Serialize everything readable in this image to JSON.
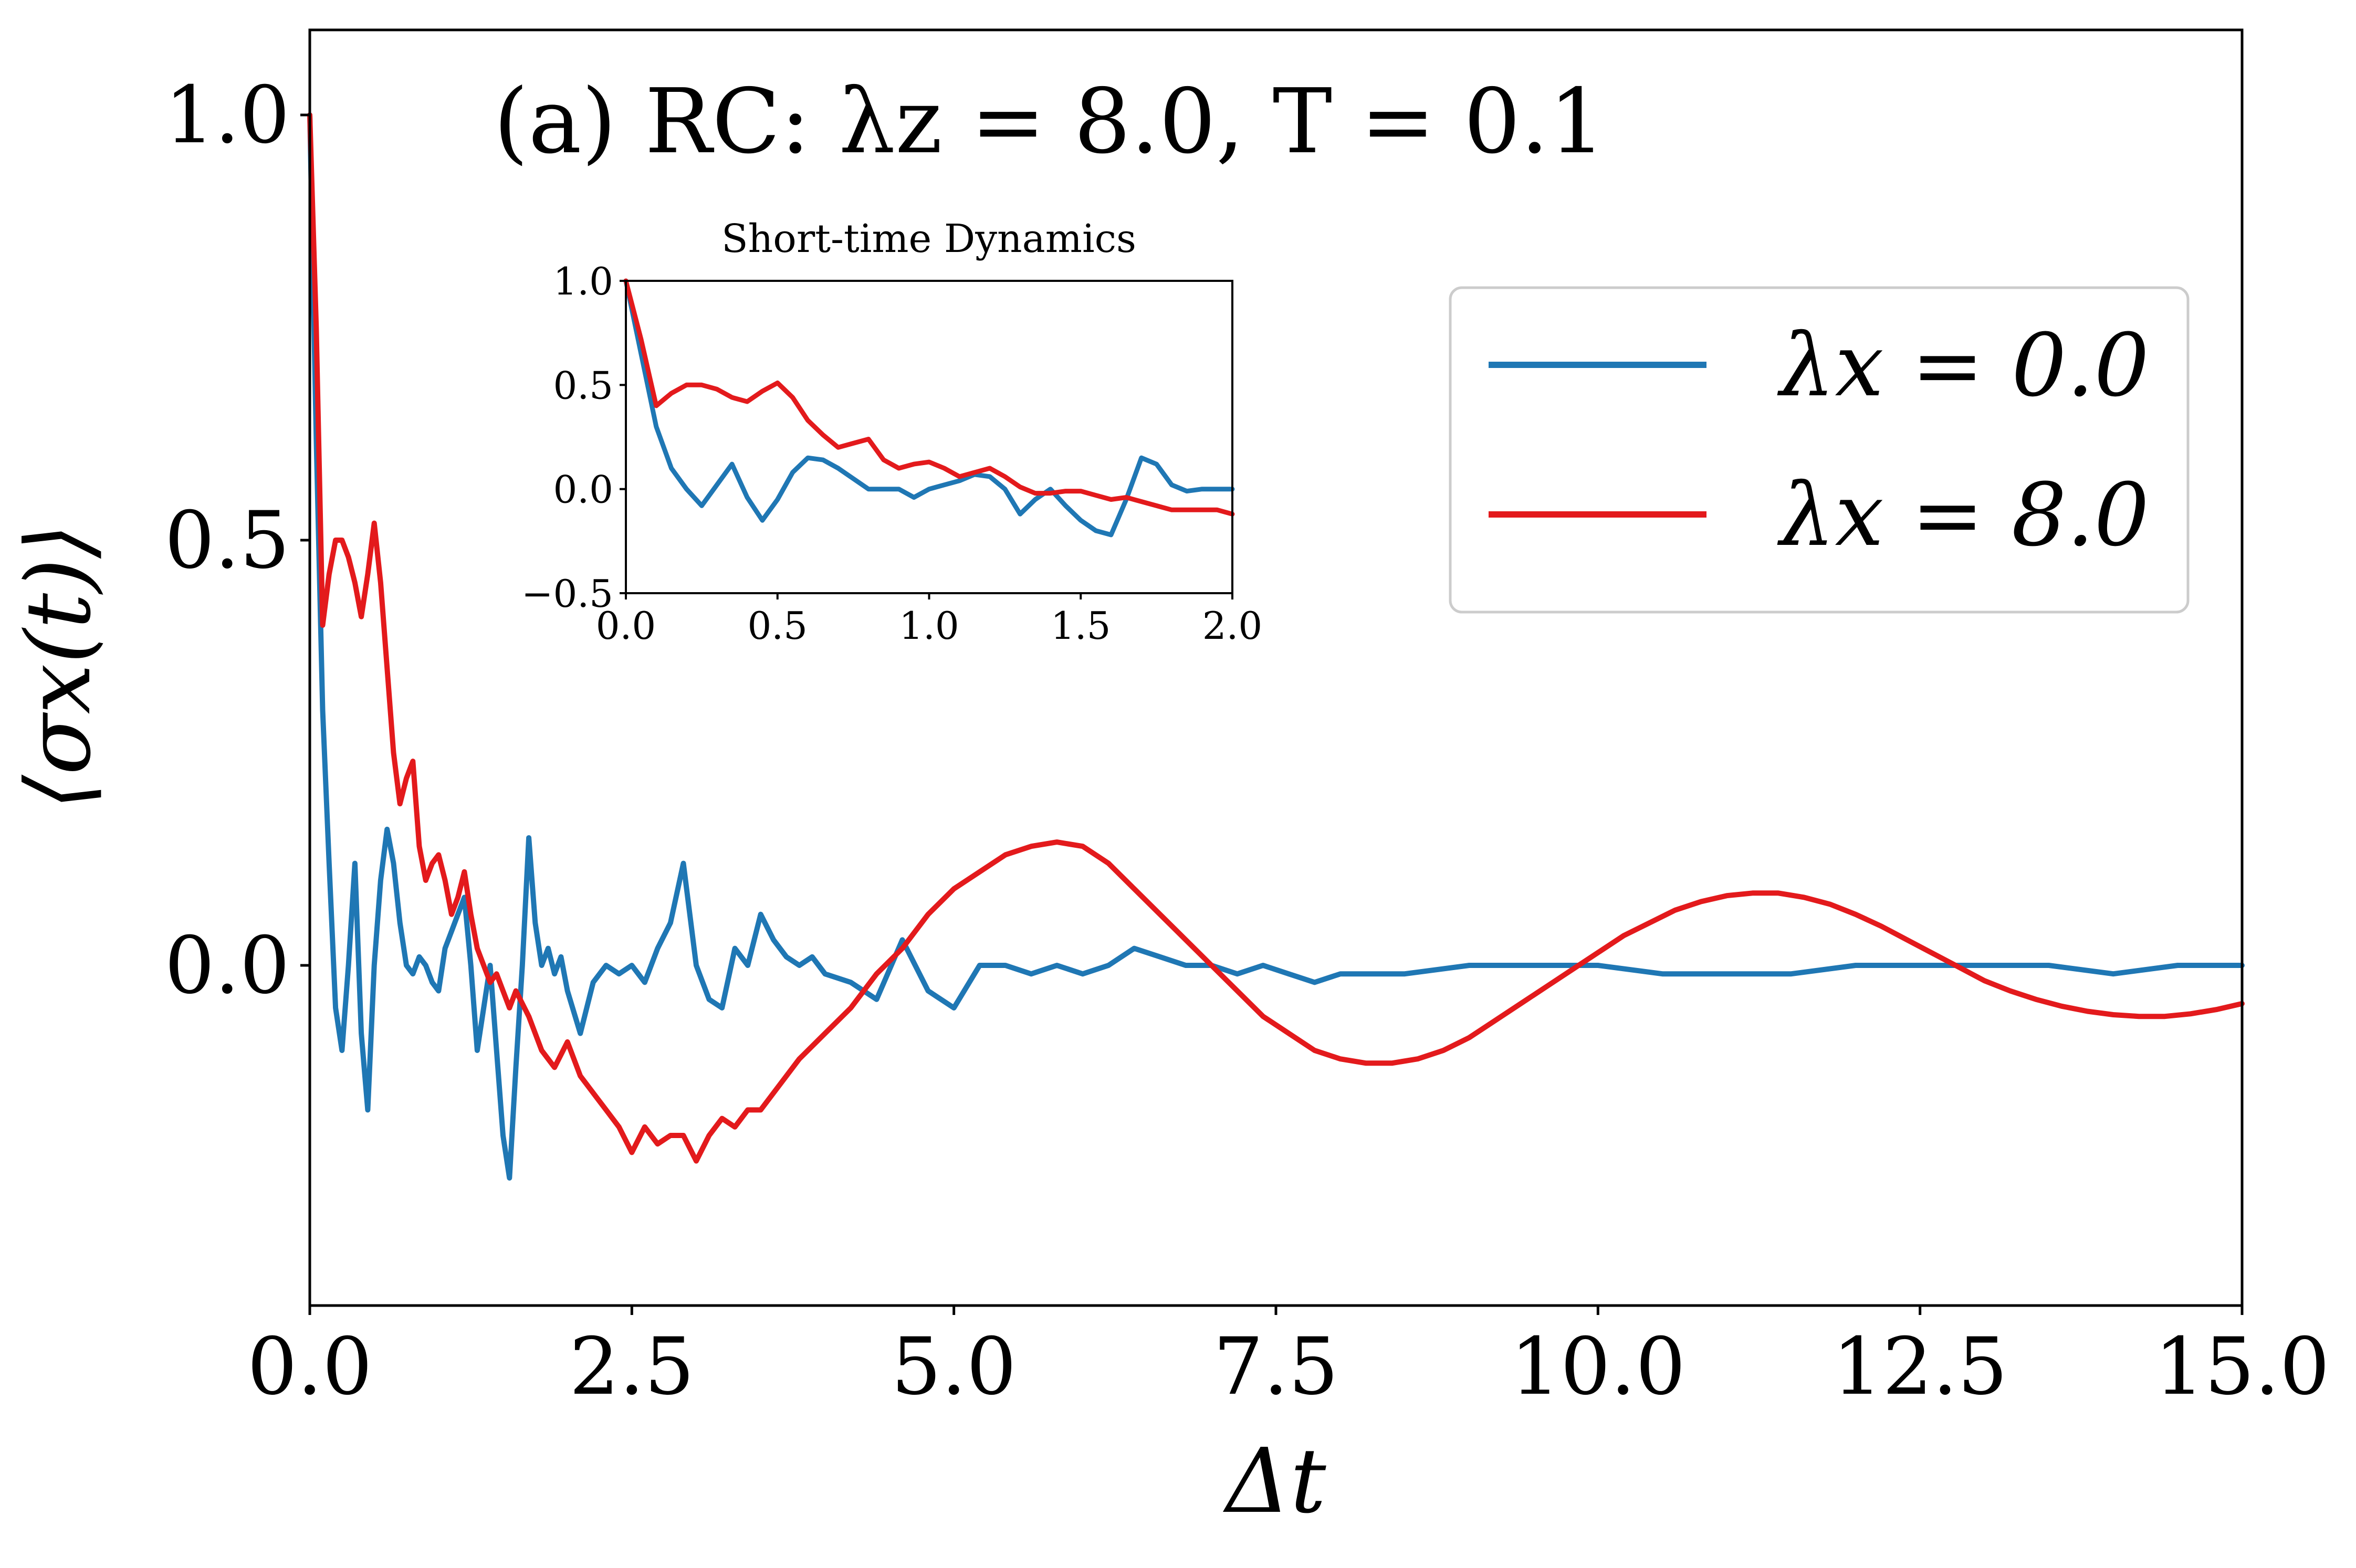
{
  "chart_data": [
    {
      "type": "line",
      "title": "(a) RC: λz = 8.0, T = 0.1",
      "xlabel": "Δt",
      "ylabel": "⟨σx(t)⟩",
      "xlim": [
        0,
        15
      ],
      "ylim": [
        -0.4,
        1.1
      ],
      "xticks": [
        0,
        2.5,
        5,
        7.5,
        10,
        12.5,
        15
      ],
      "xtick_labels": [
        "0.0",
        "2.5",
        "5.0",
        "7.5",
        "10.0",
        "12.5",
        "15.0"
      ],
      "yticks": [
        0,
        0.5,
        1.0
      ],
      "ytick_labels": [
        "0.0",
        "0.5",
        "1.0"
      ],
      "grid": false,
      "legend_position": "top-right",
      "series": [
        {
          "name": "λx = 0.0",
          "color": "#1f77b4",
          "x": [
            0,
            0.05,
            0.1,
            0.15,
            0.2,
            0.25,
            0.3,
            0.35,
            0.4,
            0.45,
            0.5,
            0.55,
            0.6,
            0.65,
            0.7,
            0.75,
            0.8,
            0.85,
            0.9,
            0.95,
            1.0,
            1.05,
            1.1,
            1.15,
            1.2,
            1.25,
            1.3,
            1.35,
            1.4,
            1.45,
            1.5,
            1.55,
            1.6,
            1.65,
            1.7,
            1.75,
            1.8,
            1.85,
            1.9,
            1.95,
            2.0,
            2.1,
            2.2,
            2.3,
            2.4,
            2.5,
            2.6,
            2.7,
            2.8,
            2.9,
            3.0,
            3.1,
            3.2,
            3.3,
            3.4,
            3.5,
            3.6,
            3.7,
            3.8,
            3.9,
            4.0,
            4.2,
            4.4,
            4.6,
            4.8,
            5.0,
            5.2,
            5.4,
            5.6,
            5.8,
            6.0,
            6.2,
            6.4,
            6.6,
            6.8,
            7.0,
            7.2,
            7.4,
            7.6,
            7.8,
            8.0,
            8.5,
            9.0,
            9.5,
            10.0,
            10.5,
            11.0,
            11.5,
            12.0,
            12.5,
            13.0,
            13.5,
            14.0,
            14.5,
            15.0
          ],
          "y": [
            1.0,
            0.62,
            0.3,
            0.12,
            -0.05,
            -0.1,
            0.0,
            0.12,
            -0.08,
            -0.17,
            0.0,
            0.1,
            0.16,
            0.12,
            0.05,
            0.0,
            -0.01,
            0.01,
            0.0,
            -0.02,
            -0.03,
            0.02,
            0.04,
            0.06,
            0.08,
            0.0,
            -0.1,
            -0.05,
            0.0,
            -0.1,
            -0.2,
            -0.25,
            -0.12,
            0.0,
            0.15,
            0.05,
            0.0,
            0.02,
            -0.01,
            0.01,
            -0.03,
            -0.08,
            -0.02,
            0.0,
            -0.01,
            0.0,
            -0.02,
            0.02,
            0.05,
            0.12,
            0.0,
            -0.04,
            -0.05,
            0.02,
            0.0,
            0.06,
            0.03,
            0.01,
            0.0,
            0.01,
            -0.01,
            -0.02,
            -0.04,
            0.03,
            -0.03,
            -0.05,
            0.0,
            0.0,
            -0.01,
            0.0,
            -0.01,
            0.0,
            0.02,
            0.01,
            0.0,
            0.0,
            -0.01,
            0.0,
            -0.01,
            -0.02,
            -0.01,
            -0.01,
            0.0,
            0.0,
            0.0,
            -0.01,
            -0.01,
            -0.01,
            0.0,
            0.0,
            0.0,
            0.0,
            -0.01,
            0.0,
            0.0
          ]
        },
        {
          "name": "λx = 8.0",
          "color": "#e31a1c",
          "x": [
            0,
            0.05,
            0.1,
            0.15,
            0.2,
            0.25,
            0.3,
            0.35,
            0.4,
            0.45,
            0.5,
            0.55,
            0.6,
            0.65,
            0.7,
            0.75,
            0.8,
            0.85,
            0.9,
            0.95,
            1.0,
            1.05,
            1.1,
            1.15,
            1.2,
            1.25,
            1.3,
            1.35,
            1.4,
            1.45,
            1.5,
            1.55,
            1.6,
            1.7,
            1.8,
            1.9,
            2.0,
            2.1,
            2.2,
            2.3,
            2.4,
            2.5,
            2.6,
            2.7,
            2.8,
            2.9,
            3.0,
            3.1,
            3.2,
            3.3,
            3.4,
            3.5,
            3.6,
            3.8,
            4.0,
            4.2,
            4.4,
            4.6,
            4.8,
            5.0,
            5.2,
            5.4,
            5.6,
            5.8,
            6.0,
            6.2,
            6.4,
            6.6,
            6.8,
            7.0,
            7.2,
            7.4,
            7.6,
            7.8,
            8.0,
            8.2,
            8.4,
            8.6,
            8.8,
            9.0,
            9.2,
            9.4,
            9.6,
            9.8,
            10.0,
            10.2,
            10.4,
            10.6,
            10.8,
            11.0,
            11.2,
            11.4,
            11.6,
            11.8,
            12.0,
            12.2,
            12.4,
            12.6,
            12.8,
            13.0,
            13.2,
            13.4,
            13.6,
            13.8,
            14.0,
            14.2,
            14.4,
            14.6,
            14.8,
            15.0
          ],
          "y": [
            1.0,
            0.75,
            0.4,
            0.46,
            0.5,
            0.5,
            0.48,
            0.45,
            0.41,
            0.46,
            0.52,
            0.45,
            0.35,
            0.25,
            0.19,
            0.22,
            0.24,
            0.14,
            0.1,
            0.12,
            0.13,
            0.1,
            0.06,
            0.08,
            0.11,
            0.06,
            0.02,
            0.0,
            -0.02,
            -0.01,
            -0.03,
            -0.05,
            -0.03,
            -0.06,
            -0.1,
            -0.12,
            -0.09,
            -0.13,
            -0.15,
            -0.17,
            -0.19,
            -0.22,
            -0.19,
            -0.21,
            -0.2,
            -0.2,
            -0.23,
            -0.2,
            -0.18,
            -0.19,
            -0.17,
            -0.17,
            -0.15,
            -0.11,
            -0.08,
            -0.05,
            -0.01,
            0.02,
            0.06,
            0.09,
            0.11,
            0.13,
            0.14,
            0.145,
            0.14,
            0.12,
            0.09,
            0.06,
            0.03,
            0.0,
            -0.03,
            -0.06,
            -0.08,
            -0.1,
            -0.11,
            -0.115,
            -0.115,
            -0.11,
            -0.1,
            -0.085,
            -0.065,
            -0.045,
            -0.025,
            -0.005,
            0.015,
            0.035,
            0.05,
            0.065,
            0.075,
            0.082,
            0.085,
            0.085,
            0.08,
            0.072,
            0.06,
            0.046,
            0.03,
            0.014,
            -0.002,
            -0.018,
            -0.03,
            -0.04,
            -0.048,
            -0.054,
            -0.058,
            -0.06,
            -0.06,
            -0.057,
            -0.052,
            -0.045
          ]
        }
      ]
    },
    {
      "type": "line",
      "title": "Short-time Dynamics",
      "xlabel": "",
      "ylabel": "",
      "xlim": [
        0,
        2.0
      ],
      "ylim": [
        -0.5,
        1.0
      ],
      "xticks": [
        0,
        0.5,
        1.0,
        1.5,
        2.0
      ],
      "xtick_labels": [
        "0.0",
        "0.5",
        "1.0",
        "1.5",
        "2.0"
      ],
      "yticks": [
        -0.5,
        0,
        0.5,
        1.0
      ],
      "ytick_labels": [
        "−0.5",
        "0.0",
        "0.5",
        "1.0"
      ],
      "grid": false,
      "series": [
        {
          "name": "λx = 0.0",
          "color": "#1f77b4",
          "x": [
            0,
            0.05,
            0.1,
            0.15,
            0.2,
            0.25,
            0.3,
            0.35,
            0.4,
            0.45,
            0.5,
            0.55,
            0.6,
            0.65,
            0.7,
            0.75,
            0.8,
            0.85,
            0.9,
            0.95,
            1.0,
            1.05,
            1.1,
            1.15,
            1.2,
            1.25,
            1.3,
            1.35,
            1.4,
            1.45,
            1.5,
            1.55,
            1.6,
            1.65,
            1.7,
            1.75,
            1.8,
            1.85,
            1.9,
            1.95,
            2.0
          ],
          "y": [
            1.0,
            0.65,
            0.3,
            0.1,
            0.0,
            -0.08,
            0.02,
            0.12,
            -0.04,
            -0.15,
            -0.05,
            0.08,
            0.15,
            0.14,
            0.1,
            0.05,
            0.0,
            0.0,
            0.0,
            -0.04,
            0.0,
            0.02,
            0.04,
            0.07,
            0.06,
            0.0,
            -0.12,
            -0.05,
            0.0,
            -0.08,
            -0.15,
            -0.2,
            -0.22,
            -0.05,
            0.15,
            0.12,
            0.02,
            -0.01,
            0.0,
            0.0,
            0.0
          ]
        },
        {
          "name": "λx = 8.0",
          "color": "#e31a1c",
          "x": [
            0,
            0.05,
            0.1,
            0.15,
            0.2,
            0.25,
            0.3,
            0.35,
            0.4,
            0.45,
            0.5,
            0.55,
            0.6,
            0.65,
            0.7,
            0.75,
            0.8,
            0.85,
            0.9,
            0.95,
            1.0,
            1.05,
            1.1,
            1.15,
            1.2,
            1.25,
            1.3,
            1.35,
            1.4,
            1.45,
            1.5,
            1.55,
            1.6,
            1.65,
            1.7,
            1.75,
            1.8,
            1.85,
            1.9,
            1.95,
            2.0
          ],
          "y": [
            1.0,
            0.72,
            0.4,
            0.46,
            0.5,
            0.5,
            0.48,
            0.44,
            0.42,
            0.47,
            0.51,
            0.44,
            0.33,
            0.26,
            0.2,
            0.22,
            0.24,
            0.14,
            0.1,
            0.12,
            0.13,
            0.1,
            0.06,
            0.08,
            0.1,
            0.06,
            0.01,
            -0.02,
            -0.02,
            -0.01,
            -0.01,
            -0.03,
            -0.05,
            -0.04,
            -0.06,
            -0.08,
            -0.1,
            -0.1,
            -0.1,
            -0.1,
            -0.12
          ]
        }
      ]
    }
  ]
}
